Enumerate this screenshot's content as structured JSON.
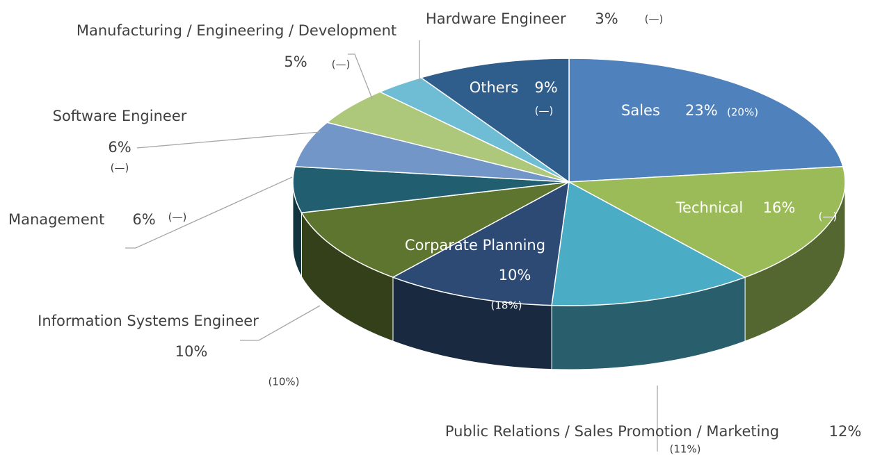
{
  "chart_data": {
    "type": "pie3d",
    "categories": [
      "Sales",
      "Technical",
      "Public Relations / Sales Promotion / Marketing",
      "Corparate Planning",
      "Information Systems Engineer",
      "Management",
      "Software Engineer",
      "Manufacturing / Engineering / Development",
      "Hardware Engineer",
      "Others"
    ],
    "values": [
      23,
      16,
      12,
      10,
      10,
      6,
      6,
      5,
      3,
      9
    ],
    "value_labels": [
      "23%",
      "16%",
      "12%",
      "10%",
      "10%",
      "6%",
      "6%",
      "5%",
      "3%",
      "9%"
    ],
    "previous_labels": [
      "(20%)",
      "(—)",
      "(11%)",
      "(18%)",
      "(10%)",
      "(—)",
      "(—)",
      "(—)",
      "(—)",
      "(—)"
    ],
    "colors": [
      "#4f81bd",
      "#9bbb59",
      "#4bacc6",
      "#2c4a74",
      "#5e7530",
      "#215f70",
      "#7396c8",
      "#adc77b",
      "#6ebdd4",
      "#2f5d8c"
    ]
  }
}
